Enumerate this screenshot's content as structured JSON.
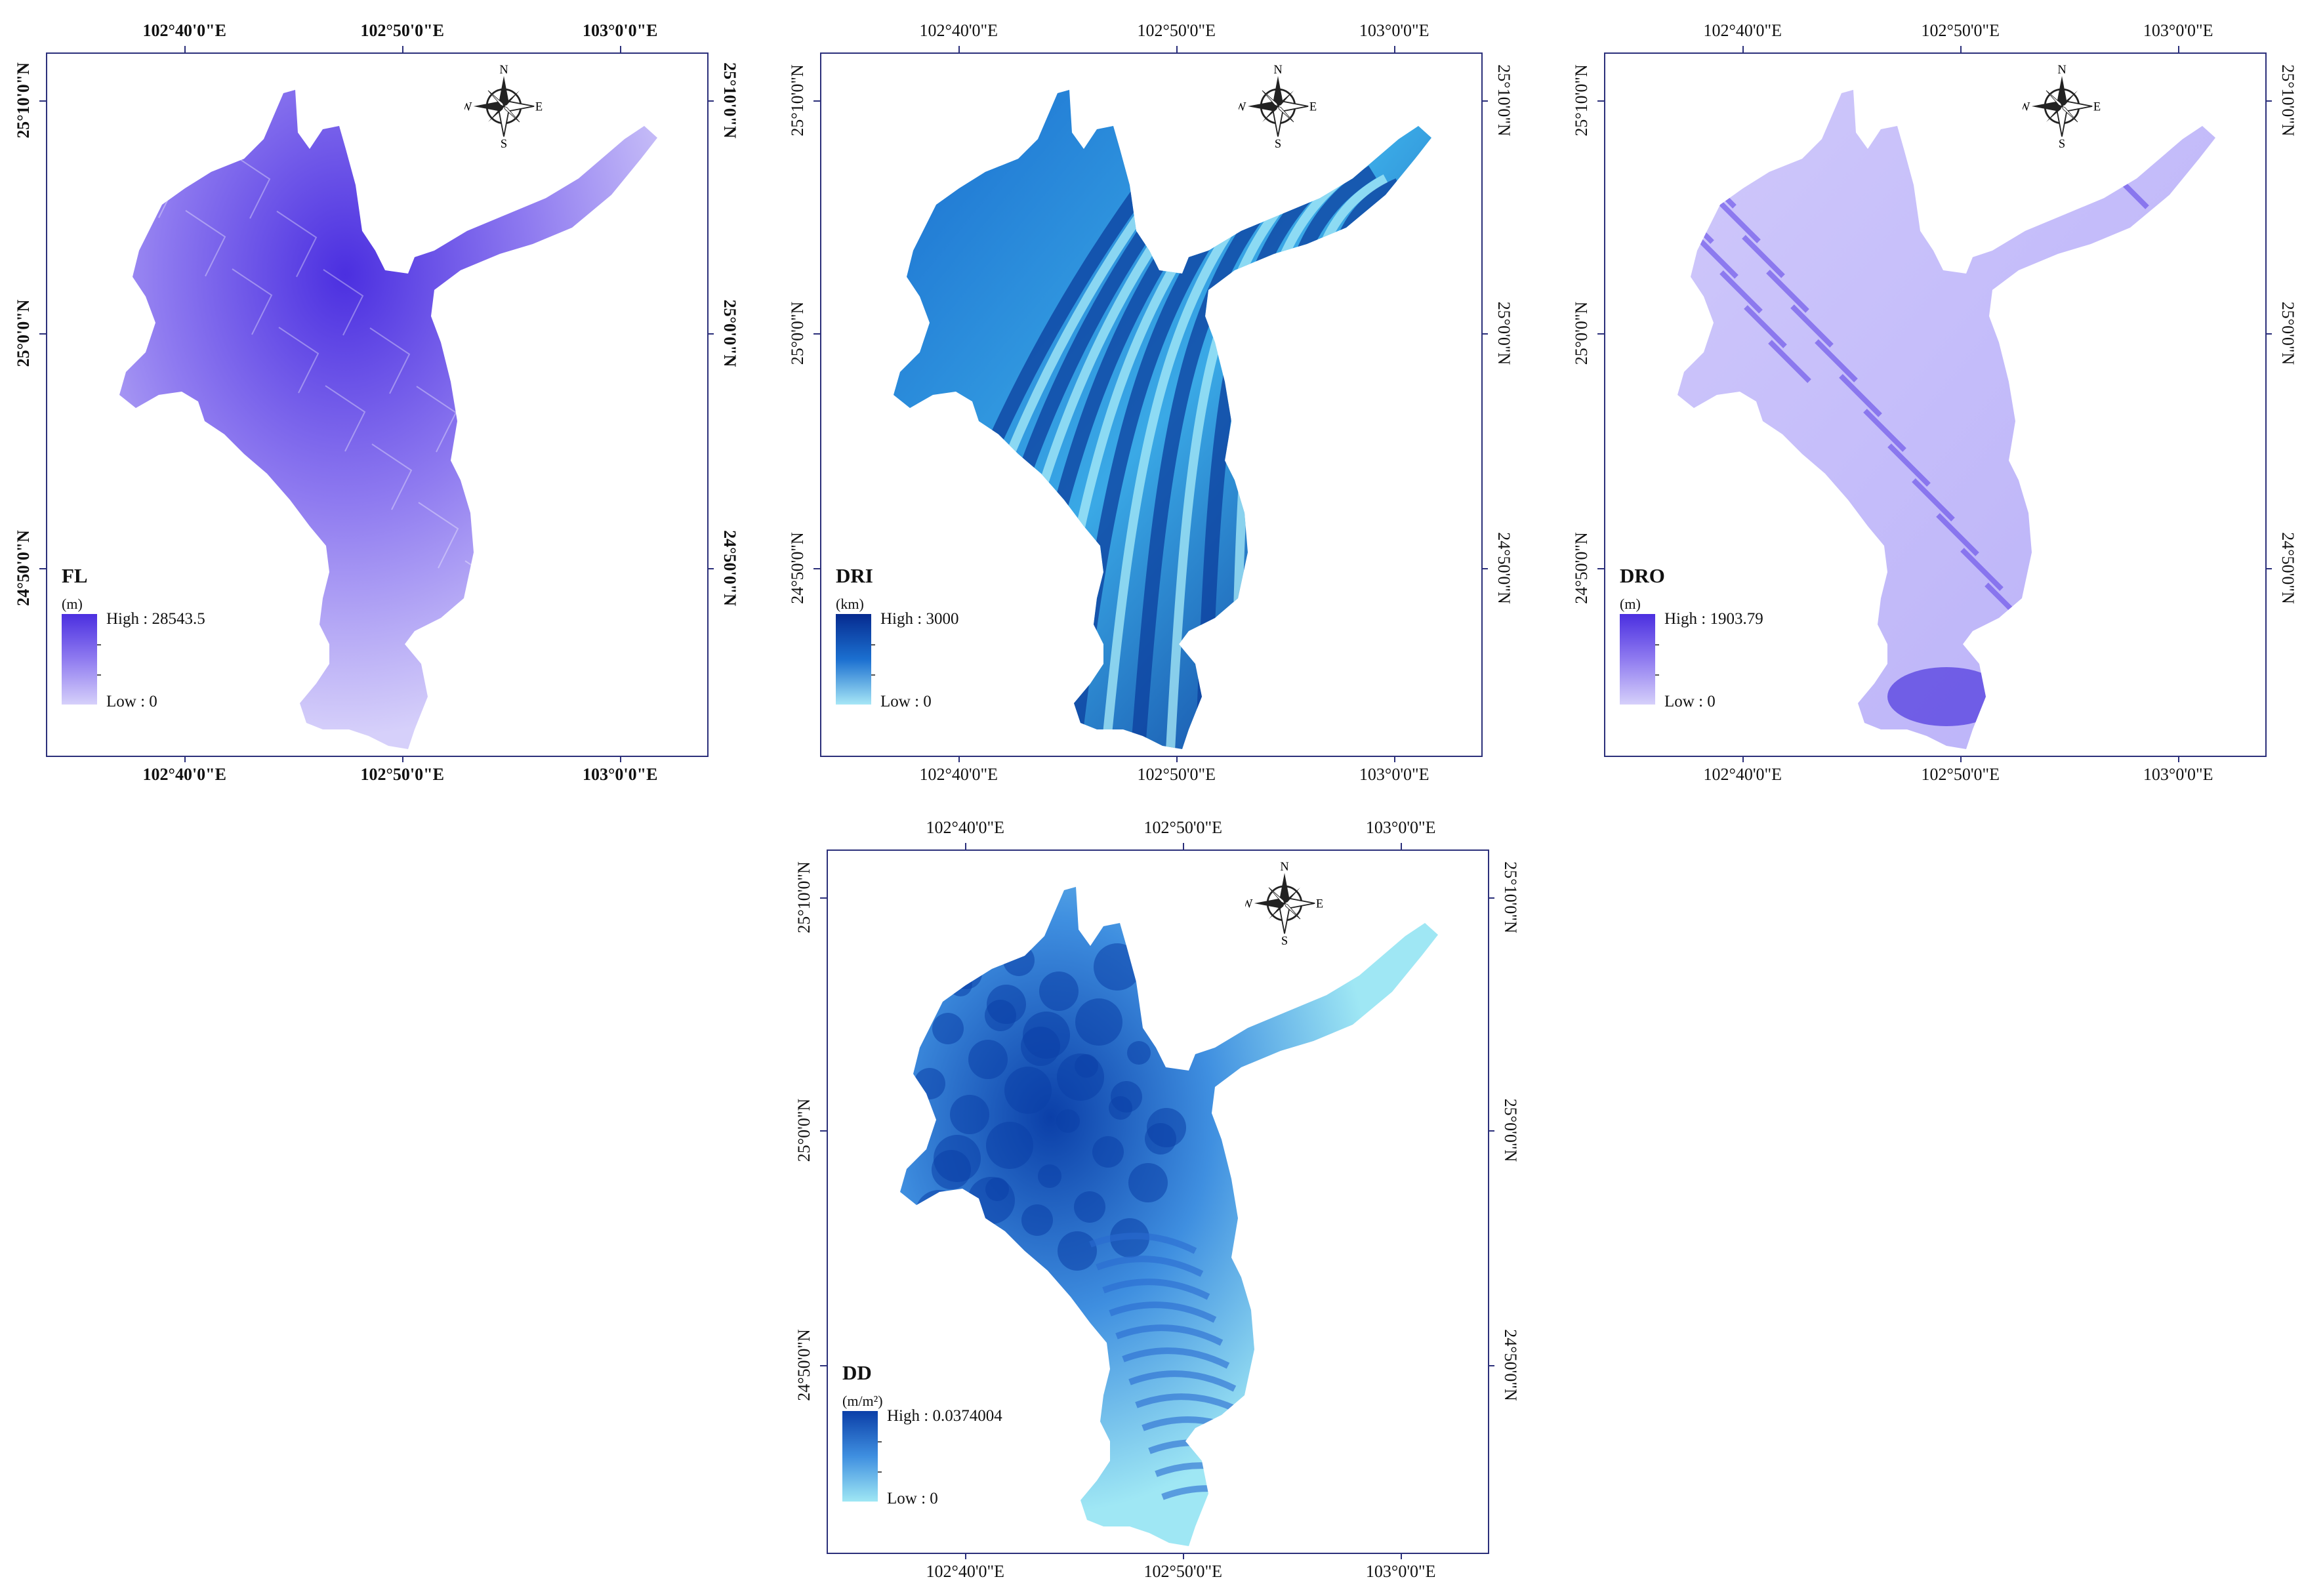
{
  "colors": {
    "frame": "#2b2f7a",
    "purple_high": "#4b2fe0",
    "purple_mid": "#8f7bf0",
    "purple_low": "#d6d0fa",
    "blue_high": "#062a8f",
    "blue_mid": "#1b6fd0",
    "blue_low": "#a6e6f6",
    "cyan_low": "#9fe7f4",
    "cyan_high": "#0b3fa8"
  },
  "compass": {
    "north": "N",
    "south": "S",
    "east": "E",
    "west": "W"
  },
  "panels": [
    {
      "id": "fl",
      "title": "FL",
      "unit": "(m)",
      "high": "High : 28543.5",
      "low": "Low : 0",
      "palette": "purple",
      "bold_labels": true,
      "top_labels": [
        "102°40'0\"E",
        "102°50'0\"E",
        "103°0'0\"E"
      ],
      "bottom_labels": [
        "102°40'0\"E",
        "102°50'0\"E",
        "103°0'0\"E"
      ],
      "left_labels": [
        "25°10'0\"N",
        "25°0'0\"N",
        "24°50'0\"N"
      ],
      "right_labels": [
        "25°10'0\"N",
        "25°0'0\"N",
        "24°50'0\"N"
      ]
    },
    {
      "id": "dri",
      "title": "DRI",
      "unit": "(km)",
      "high": "High : 3000",
      "low": "Low : 0",
      "palette": "blue",
      "bold_labels": false,
      "top_labels": [
        "102°40'0\"E",
        "102°50'0\"E",
        "103°0'0\"E"
      ],
      "bottom_labels": [
        "102°40'0\"E",
        "102°50'0\"E",
        "103°0'0\"E"
      ],
      "left_labels": [
        "25°10'0\"N",
        "25°0'0\"N",
        "24°50'0\"N"
      ],
      "right_labels": [
        "25°10'0\"N",
        "25°0'0\"N",
        "24°50'0\"N"
      ]
    },
    {
      "id": "dro",
      "title": "DRO",
      "unit": "(m)",
      "high": "High : 1903.79",
      "low": "Low : 0",
      "palette": "violet",
      "bold_labels": false,
      "top_labels": [
        "102°40'0\"E",
        "102°50'0\"E",
        "103°0'0\"E"
      ],
      "bottom_labels": [
        "102°40'0\"E",
        "102°50'0\"E",
        "103°0'0\"E"
      ],
      "left_labels": [
        "25°10'0\"N",
        "25°0'0\"N",
        "24°50'0\"N"
      ],
      "right_labels": [
        "25°10'0\"N",
        "25°0'0\"N",
        "24°50'0\"N"
      ]
    },
    {
      "id": "dd",
      "title": "DD",
      "unit": "(m/m²)",
      "high": "High : 0.0374004",
      "low": "Low : 0",
      "palette": "cyan",
      "bold_labels": false,
      "top_labels": [
        "102°40'0\"E",
        "102°50'0\"E",
        "103°0'0\"E"
      ],
      "bottom_labels": [
        "102°40'0\"E",
        "102°50'0\"E",
        "103°0'0\"E"
      ],
      "left_labels": [
        "25°10'0\"N",
        "25°0'0\"N",
        "24°50'0\"N"
      ],
      "right_labels": [
        "25°10'0\"N",
        "25°0'0\"N",
        "24°50'0\"N"
      ]
    }
  ]
}
